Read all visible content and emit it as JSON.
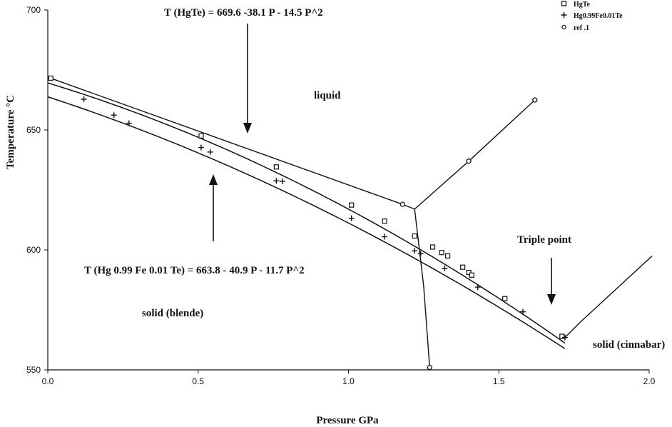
{
  "chart_data": {
    "type": "line",
    "xlabel": "Pressure GPa",
    "ylabel": "Temperature °C",
    "xlim": [
      0.0,
      2.0
    ],
    "ylim": [
      550,
      700
    ],
    "xticks": [
      "0.0",
      "0.5",
      "1.0",
      "1.5",
      "2.0"
    ],
    "yticks": [
      "550",
      "600",
      "650",
      "700"
    ],
    "grid": false,
    "legend_position": "top-right",
    "series": [
      {
        "name": "HgTe",
        "marker": "square",
        "points": [
          [
            0.01,
            671.6
          ],
          [
            0.51,
            647.5
          ],
          [
            0.76,
            634.6
          ],
          [
            1.01,
            618.7
          ],
          [
            1.12,
            612.0
          ],
          [
            1.22,
            605.8
          ],
          [
            1.28,
            601.2
          ],
          [
            1.31,
            598.9
          ],
          [
            1.33,
            597.5
          ],
          [
            1.38,
            592.8
          ],
          [
            1.4,
            590.6
          ],
          [
            1.41,
            589.5
          ],
          [
            1.52,
            579.7
          ],
          [
            1.71,
            564.0
          ]
        ],
        "fit": {
          "label": "T (HgTe) = 669.6 -38.1 P - 14.5 P^2",
          "a": 669.6,
          "b": -38.1,
          "c": -14.5,
          "range": [
            0.0,
            1.72
          ]
        }
      },
      {
        "name": "Hg0.99Fe0.01Te",
        "marker": "plus",
        "points": [
          [
            0.12,
            662.8
          ],
          [
            0.22,
            656.2
          ],
          [
            0.27,
            652.8
          ],
          [
            0.51,
            642.7
          ],
          [
            0.54,
            640.8
          ],
          [
            0.76,
            628.8
          ],
          [
            0.78,
            628.6
          ],
          [
            1.01,
            613.2
          ],
          [
            1.12,
            605.5
          ],
          [
            1.22,
            599.6
          ],
          [
            1.24,
            598.4
          ],
          [
            1.32,
            592.3
          ],
          [
            1.43,
            584.5
          ],
          [
            1.58,
            574.2
          ],
          [
            1.72,
            563.5
          ]
        ],
        "fit": {
          "label": "T (Hg 0.99 Fe 0.01 Te) = 663.8 - 40.9 P - 11.7 P^2",
          "a": 663.8,
          "b": -40.9,
          "c": -11.7,
          "range": [
            0.0,
            1.72
          ]
        }
      },
      {
        "name": "ref .1",
        "marker": "circle",
        "segments": [
          [
            [
              0.0,
              672.0
            ],
            [
              1.18,
              619.0
            ],
            [
              1.22,
              617.0
            ]
          ],
          [
            [
              1.22,
              617.0
            ],
            [
              1.4,
              637.0
            ],
            [
              1.62,
              662.5
            ]
          ],
          [
            [
              1.22,
              617.0
            ],
            [
              1.25,
              585.0
            ],
            [
              1.27,
              551.0
            ]
          ],
          [
            [
              1.72,
              563.5
            ],
            [
              1.77,
              569.8
            ],
            [
              2.01,
              597.5
            ]
          ]
        ],
        "markers": [
          [
            1.18,
            619.0
          ],
          [
            1.4,
            637.0
          ],
          [
            1.62,
            662.5
          ],
          [
            1.27,
            551.0
          ]
        ]
      }
    ],
    "annotations": {
      "hgte_formula": "T (HgTe) = 669.6 -38.1 P - 14.5 P^2",
      "fe_formula": "T (Hg 0.99 Fe 0.01 Te) = 663.8 - 40.9 P - 11.7 P^2",
      "liquid": "liquid",
      "solid_blende": "solid (blende)",
      "triple_point": "Triple point",
      "solid_cinnabar": "solid (cinnabar)"
    }
  }
}
